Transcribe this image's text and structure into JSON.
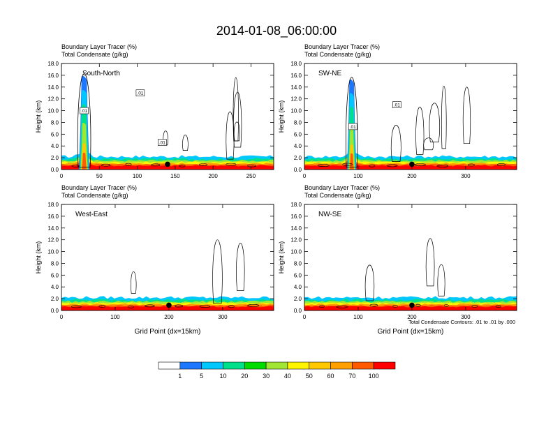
{
  "title": "2014-01-08_06:00:00",
  "colors": {
    "scale": [
      "#ffffff",
      "#1e78ff",
      "#00c8ff",
      "#00e08a",
      "#00dc00",
      "#a0e632",
      "#fff500",
      "#ffc800",
      "#ffa000",
      "#ff5a00",
      "#ff0000"
    ]
  },
  "colorbar": {
    "labels": [
      "1",
      "5",
      "10",
      "20",
      "30",
      "40",
      "50",
      "60",
      "70",
      "100"
    ]
  },
  "footnote": "Total Condensate Contours: .01 to .01 by .000",
  "chart_data": [
    {
      "type": "heatmap",
      "panel": "South-North",
      "field1": "Boundary Layer Tracer   (%)",
      "field2": "Total Condensate   (g/kg)",
      "ylabel": "Height (km)",
      "xlabel": "",
      "xlim": [
        0,
        280
      ],
      "ylim": [
        0,
        18
      ],
      "xticks": [
        "0",
        "50",
        "100",
        "150",
        "200",
        "250"
      ],
      "xtick_values": [
        0,
        50,
        100,
        150,
        200,
        250
      ],
      "yticks": [
        "0.0",
        "2.0",
        "4.0",
        "6.0",
        "8.0",
        "10.0",
        "12.0",
        "14.0",
        "16.0",
        "18.0"
      ],
      "plume": {
        "center_x": 30,
        "top_km": 15.8,
        "width": 8
      },
      "marker": {
        "x": 140,
        "y": 0.9
      },
      "contour_labels": [
        {
          "text": ".01",
          "x": 30,
          "y": 10
        },
        {
          "text": ".01",
          "x": 104,
          "y": 13
        },
        {
          "text": ".01",
          "x": 133,
          "y": 4.6
        }
      ]
    },
    {
      "type": "heatmap",
      "panel": "SW-NE",
      "field1": "Boundary Layer Tracer   (%)",
      "field2": "Total Condensate   (g/kg)",
      "ylabel": "Height (km)",
      "xlabel": "",
      "xlim": [
        0,
        395
      ],
      "ylim": [
        0,
        18
      ],
      "xticks": [
        "0",
        "100",
        "200",
        "300"
      ],
      "xtick_values": [
        0,
        100,
        200,
        300
      ],
      "yticks": [
        "0.0",
        "2.0",
        "4.0",
        "6.0",
        "8.0",
        "10.0",
        "12.0",
        "14.0",
        "16.0",
        "18.0"
      ],
      "plume": {
        "center_x": 88,
        "top_km": 15.2,
        "width": 10
      },
      "marker": {
        "x": 200,
        "y": 0.9
      },
      "contour_labels": [
        {
          "text": ".01",
          "x": 90,
          "y": 7.3
        },
        {
          "text": ".01",
          "x": 172,
          "y": 11
        }
      ]
    },
    {
      "type": "heatmap",
      "panel": "West-East",
      "field1": "Boundary Layer Tracer   (%)",
      "field2": "Total Condensate   (g/kg)",
      "ylabel": "Height (km)",
      "xlabel": "Grid Point (dx=15km)",
      "xlim": [
        0,
        395
      ],
      "ylim": [
        0,
        18
      ],
      "xticks": [
        "0",
        "100",
        "200",
        "300"
      ],
      "xtick_values": [
        0,
        100,
        200,
        300
      ],
      "yticks": [
        "0.0",
        "2.0",
        "4.0",
        "6.0",
        "8.0",
        "10.0",
        "12.0",
        "14.0",
        "16.0",
        "18.0"
      ],
      "plume": null,
      "marker": {
        "x": 200,
        "y": 0.9
      },
      "contour_labels": []
    },
    {
      "type": "heatmap",
      "panel": "NW-SE",
      "field1": "Boundary Layer Tracer   (%)",
      "field2": "Total Condensate   (g/kg)",
      "ylabel": "Height (km)",
      "xlabel": "Grid Point (dx=15km)",
      "xlim": [
        0,
        395
      ],
      "ylim": [
        0,
        18
      ],
      "xticks": [
        "0",
        "100",
        "200",
        "300"
      ],
      "xtick_values": [
        0,
        100,
        200,
        300
      ],
      "yticks": [
        "0.0",
        "2.0",
        "4.0",
        "6.0",
        "8.0",
        "10.0",
        "12.0",
        "14.0",
        "16.0",
        "18.0"
      ],
      "plume": null,
      "marker": {
        "x": 200,
        "y": 0.9
      },
      "contour_labels": []
    }
  ]
}
